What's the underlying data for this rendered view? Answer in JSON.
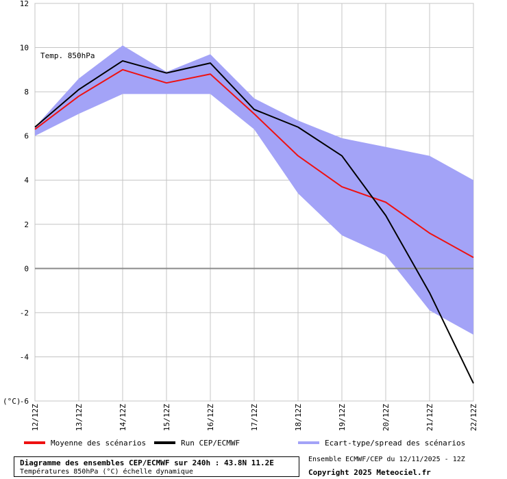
{
  "chart_data": {
    "type": "line",
    "title": "Temp. 850hPa",
    "ylabel": "(°C)",
    "ylim": [
      -6,
      12
    ],
    "yticks": [
      12,
      10,
      8,
      6,
      4,
      2,
      0,
      -2,
      -4,
      -6
    ],
    "categories": [
      "12/12Z",
      "13/12Z",
      "14/12Z",
      "15/12Z",
      "16/12Z",
      "17/12Z",
      "18/12Z",
      "19/12Z",
      "20/12Z",
      "21/12Z",
      "22/12Z"
    ],
    "band": {
      "name": "Ecart-type/spread des scénarios",
      "color": "#a3a3f7",
      "upper": [
        6.4,
        8.6,
        10.1,
        8.9,
        9.7,
        7.7,
        6.7,
        5.9,
        5.5,
        5.1,
        4.0
      ],
      "lower": [
        6.0,
        7.0,
        7.9,
        7.9,
        7.9,
        6.3,
        3.4,
        1.5,
        0.6,
        -1.9,
        -3.0
      ]
    },
    "series": [
      {
        "name": "Moyenne des scénarios",
        "color": "#ee1111",
        "values": [
          6.3,
          7.8,
          9.0,
          8.4,
          8.8,
          7.0,
          5.1,
          3.7,
          3.0,
          1.6,
          0.5
        ]
      },
      {
        "name": "Run CEP/ECMWF",
        "color": "#000000",
        "values": [
          6.4,
          8.1,
          9.4,
          8.85,
          9.3,
          7.2,
          6.4,
          5.1,
          2.4,
          -1.1,
          -5.2
        ]
      }
    ],
    "grid": true,
    "legend": "bottom"
  },
  "footer": {
    "title": "Diagramme des ensembles CEP/ECMWF sur 240h : 43.8N 11.2E",
    "subtitle": "Températures 850hPa (°C) échelle dynamique",
    "ensemble": "Ensemble ECMWF/CEP du 12/11/2025 - 12Z",
    "copyright": "Copyright 2025 Meteociel.fr"
  }
}
